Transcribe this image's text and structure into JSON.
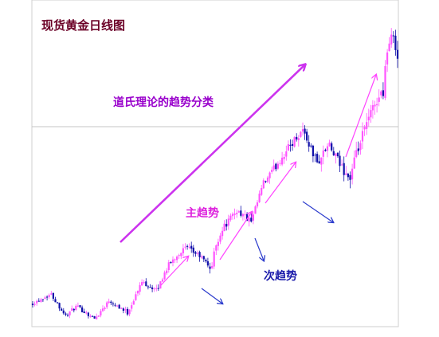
{
  "chart_data": {
    "type": "candlestick",
    "title": "现货黄金日线图",
    "xlabel": "",
    "ylabel": "",
    "grid": false,
    "legend": "none",
    "reference_line": {
      "y": 0.76,
      "style": "thin gray horizontal"
    },
    "annotations": [
      {
        "text": "道氏理论的趋势分类",
        "role": "caption"
      },
      {
        "text": "主趋势",
        "role": "primary-trend"
      },
      {
        "text": "次趋势",
        "role": "secondary-trend"
      }
    ],
    "trend_anchors": {
      "x": [
        0,
        0.05,
        0.09,
        0.12,
        0.17,
        0.21,
        0.26,
        0.3,
        0.34,
        0.37,
        0.4,
        0.42,
        0.46,
        0.49,
        0.5,
        0.52,
        0.56,
        0.6,
        0.63,
        0.66,
        0.7,
        0.74,
        0.78,
        0.81,
        0.84,
        0.87,
        0.88,
        0.91,
        0.94,
        0.96,
        0.97,
        0.99,
        1.0
      ],
      "y": [
        0.07,
        0.1,
        0.03,
        0.06,
        0.02,
        0.08,
        0.04,
        0.14,
        0.11,
        0.19,
        0.23,
        0.25,
        0.22,
        0.18,
        0.25,
        0.31,
        0.37,
        0.33,
        0.45,
        0.5,
        0.57,
        0.63,
        0.52,
        0.58,
        0.52,
        0.47,
        0.52,
        0.63,
        0.72,
        0.75,
        0.88,
        0.94,
        0.86
      ]
    },
    "colors": {
      "up": "#ff55ff",
      "down": "#1010aa",
      "arrow": "#cc33ee",
      "primary_label": "#dd22dd",
      "secondary_label": "#1a1aaa",
      "title": "#6b0026",
      "caption": "#9900cc"
    }
  }
}
